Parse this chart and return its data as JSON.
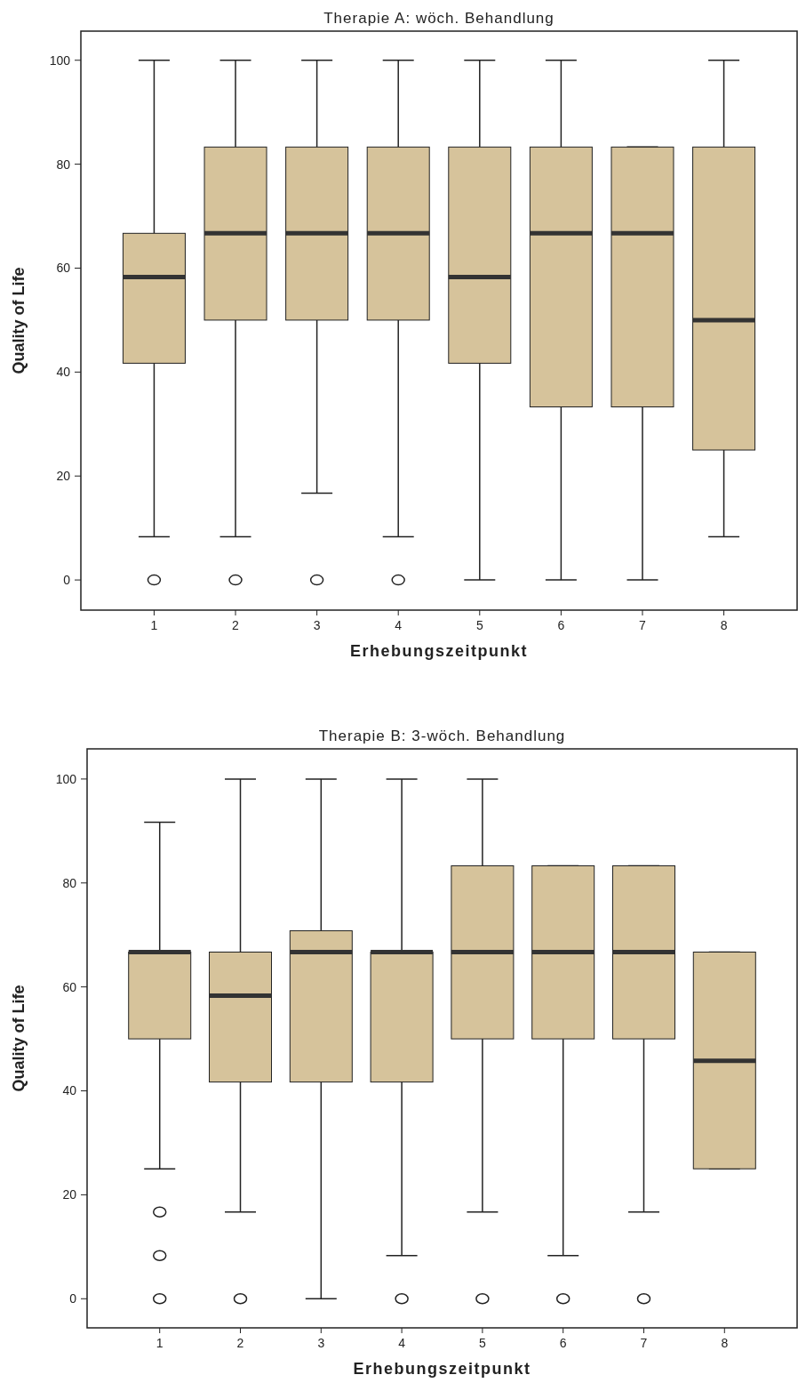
{
  "chart_data": [
    {
      "type": "box",
      "title": "Therapie A: wöch. Behandlung",
      "xlabel": "Erhebungszeitpunkt",
      "ylabel": "Quality of Life",
      "categories": [
        "1",
        "2",
        "3",
        "4",
        "5",
        "6",
        "7",
        "8"
      ],
      "color": "#d6c39b",
      "ylim": [
        -5.8,
        105.6
      ],
      "yticks": [
        0,
        20,
        40,
        60,
        80,
        100
      ],
      "boxes": [
        {
          "low": 8.3,
          "q1": 41.7,
          "median": 58.3,
          "q3": 66.7,
          "high": 100,
          "outliers": [
            0
          ]
        },
        {
          "low": 8.3,
          "q1": 50,
          "median": 66.7,
          "q3": 83.3,
          "high": 100,
          "outliers": [
            0
          ]
        },
        {
          "low": 16.7,
          "q1": 50,
          "median": 66.7,
          "q3": 83.3,
          "high": 100,
          "outliers": [
            0
          ]
        },
        {
          "low": 8.3,
          "q1": 50,
          "median": 66.7,
          "q3": 83.3,
          "high": 100,
          "outliers": [
            0
          ]
        },
        {
          "low": 0,
          "q1": 41.7,
          "median": 58.3,
          "q3": 83.3,
          "high": 100
        },
        {
          "low": 0,
          "q1": 33.3,
          "median": 66.7,
          "q3": 83.3,
          "high": 100
        },
        {
          "low": 0,
          "q1": 33.3,
          "median": 66.7,
          "q3": 83.3,
          "high": 83.3
        },
        {
          "low": 8.3,
          "q1": 25,
          "median": 50,
          "q3": 83.3,
          "high": 100
        }
      ]
    },
    {
      "type": "box",
      "title": "Therapie B: 3-wöch. Behandlung",
      "xlabel": "Erhebungszeitpunkt",
      "ylabel": "Quality of Life",
      "categories": [
        "1",
        "2",
        "3",
        "4",
        "5",
        "6",
        "7",
        "8"
      ],
      "color": "#d6c39b",
      "ylim": [
        -5.6,
        105.8
      ],
      "yticks": [
        0,
        20,
        40,
        60,
        80,
        100
      ],
      "boxes": [
        {
          "low": 25,
          "q1": 50,
          "median": 66.7,
          "q3": 66.7,
          "high": 91.7,
          "outliers": [
            16.7,
            8.3,
            0
          ]
        },
        {
          "low": 16.7,
          "q1": 41.7,
          "median": 58.3,
          "q3": 66.7,
          "high": 100,
          "outliers": [
            0
          ]
        },
        {
          "low": 0,
          "q1": 41.7,
          "median": 66.7,
          "q3": 70.8,
          "high": 100
        },
        {
          "low": 8.3,
          "q1": 41.7,
          "median": 66.7,
          "q3": 66.7,
          "high": 100,
          "outliers": [
            0
          ]
        },
        {
          "low": 16.7,
          "q1": 50,
          "median": 66.7,
          "q3": 83.3,
          "high": 100,
          "outliers": [
            0
          ]
        },
        {
          "low": 8.3,
          "q1": 50,
          "median": 66.7,
          "q3": 83.3,
          "high": 83.3,
          "outliers": [
            0
          ]
        },
        {
          "low": 16.7,
          "q1": 50,
          "median": 66.7,
          "q3": 83.3,
          "high": 83.3,
          "outliers": [
            0
          ]
        },
        {
          "low": 25,
          "q1": 25,
          "median": 45.8,
          "q3": 66.7,
          "high": 66.7
        }
      ]
    }
  ]
}
